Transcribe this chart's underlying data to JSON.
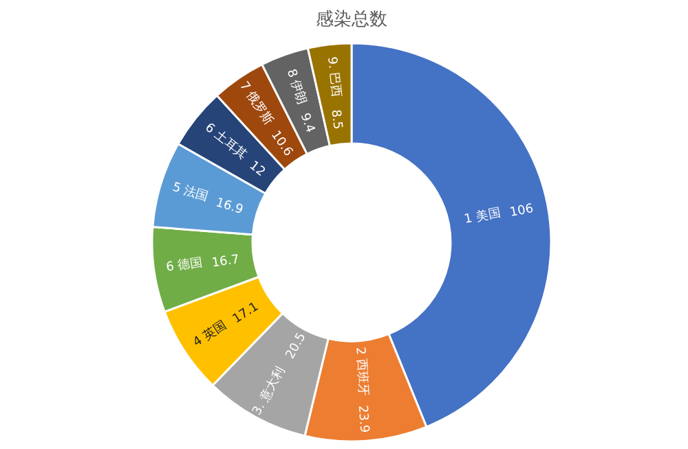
{
  "chart_data": {
    "type": "donut",
    "title": "感染总数",
    "categories": [
      "1 美国",
      "2 西班牙",
      "3. 意大利",
      "4 英国",
      "6 德国",
      "5 法国",
      "6 土耳其",
      "7 俄罗斯",
      "8 伊朗",
      "9. 巴西"
    ],
    "values": [
      106,
      23.9,
      20.5,
      17.1,
      16.7,
      16.9,
      12,
      10.6,
      9.4,
      8.5
    ],
    "colors": [
      "#4472c4",
      "#ed7d31",
      "#a5a5a5",
      "#ffc000",
      "#70ad47",
      "#5b9bd5",
      "#264478",
      "#9e480e",
      "#636363",
      "#997300"
    ],
    "data_labels": true
  }
}
